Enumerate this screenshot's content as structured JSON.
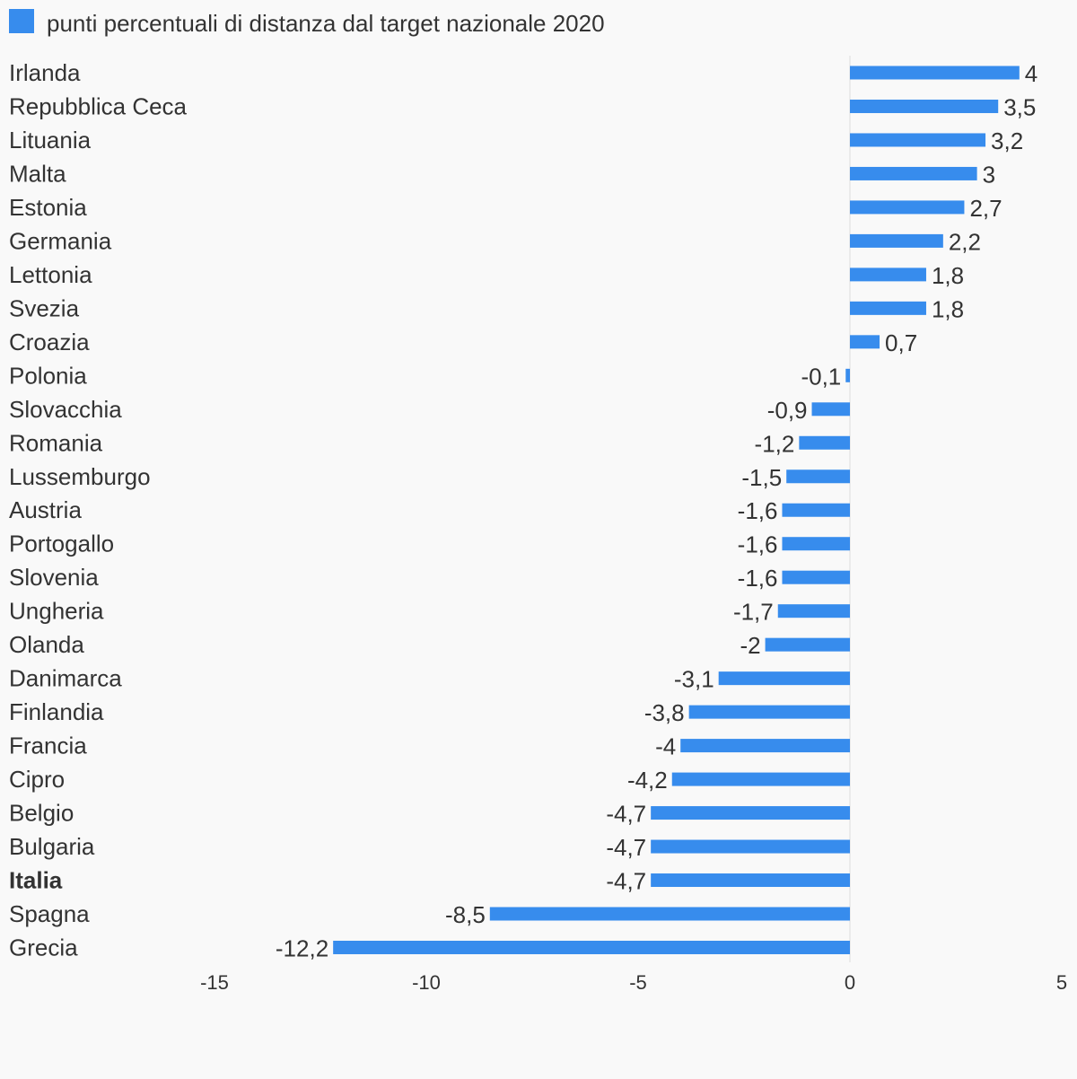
{
  "chart_data": {
    "type": "bar",
    "orientation": "horizontal",
    "legend": {
      "placement": "top-left",
      "entries": [
        "punti percentuali di distanza dal target nazionale 2020"
      ]
    },
    "series": [
      {
        "name": "punti percentuali di distanza dal target nazionale 2020",
        "color": "#378ced",
        "values": [
          4,
          3.5,
          3.2,
          3,
          2.7,
          2.2,
          1.8,
          1.8,
          0.7,
          -0.1,
          -0.9,
          -1.2,
          -1.5,
          -1.6,
          -1.6,
          -1.6,
          -1.7,
          -2,
          -3.1,
          -3.8,
          -4,
          -4.2,
          -4.7,
          -4.7,
          -4.7,
          -8.5,
          -12.2
        ],
        "value_labels": [
          "4",
          "3,5",
          "3,2",
          "3",
          "2,7",
          "2,2",
          "1,8",
          "1,8",
          "0,7",
          "-0,1",
          "-0,9",
          "-1,2",
          "-1,5",
          "-1,6",
          "-1,6",
          "-1,6",
          "-1,7",
          "-2",
          "-3,1",
          "-3,8",
          "-4",
          "-4,2",
          "-4,7",
          "-4,7",
          "-4,7",
          "-8,5",
          "-12,2"
        ]
      }
    ],
    "categories": [
      "Irlanda",
      "Repubblica Ceca",
      "Lituania",
      "Malta",
      "Estonia",
      "Germania",
      "Lettonia",
      "Svezia",
      "Croazia",
      "Polonia",
      "Slovacchia",
      "Romania",
      "Lussemburgo",
      "Austria",
      "Portogallo",
      "Slovenia",
      "Ungheria",
      "Olanda",
      "Danimarca",
      "Finlandia",
      "Francia",
      "Cipro",
      "Belgio",
      "Bulgaria",
      "Italia",
      "Spagna",
      "Grecia"
    ],
    "highlighted_category": "Italia",
    "xlim": [
      -15,
      5
    ],
    "xticks": [
      -15,
      -10,
      -5,
      0,
      5
    ],
    "xtick_labels": [
      "-15",
      "-10",
      "-5",
      "0",
      "5"
    ],
    "grid": false,
    "zero_line": true
  }
}
